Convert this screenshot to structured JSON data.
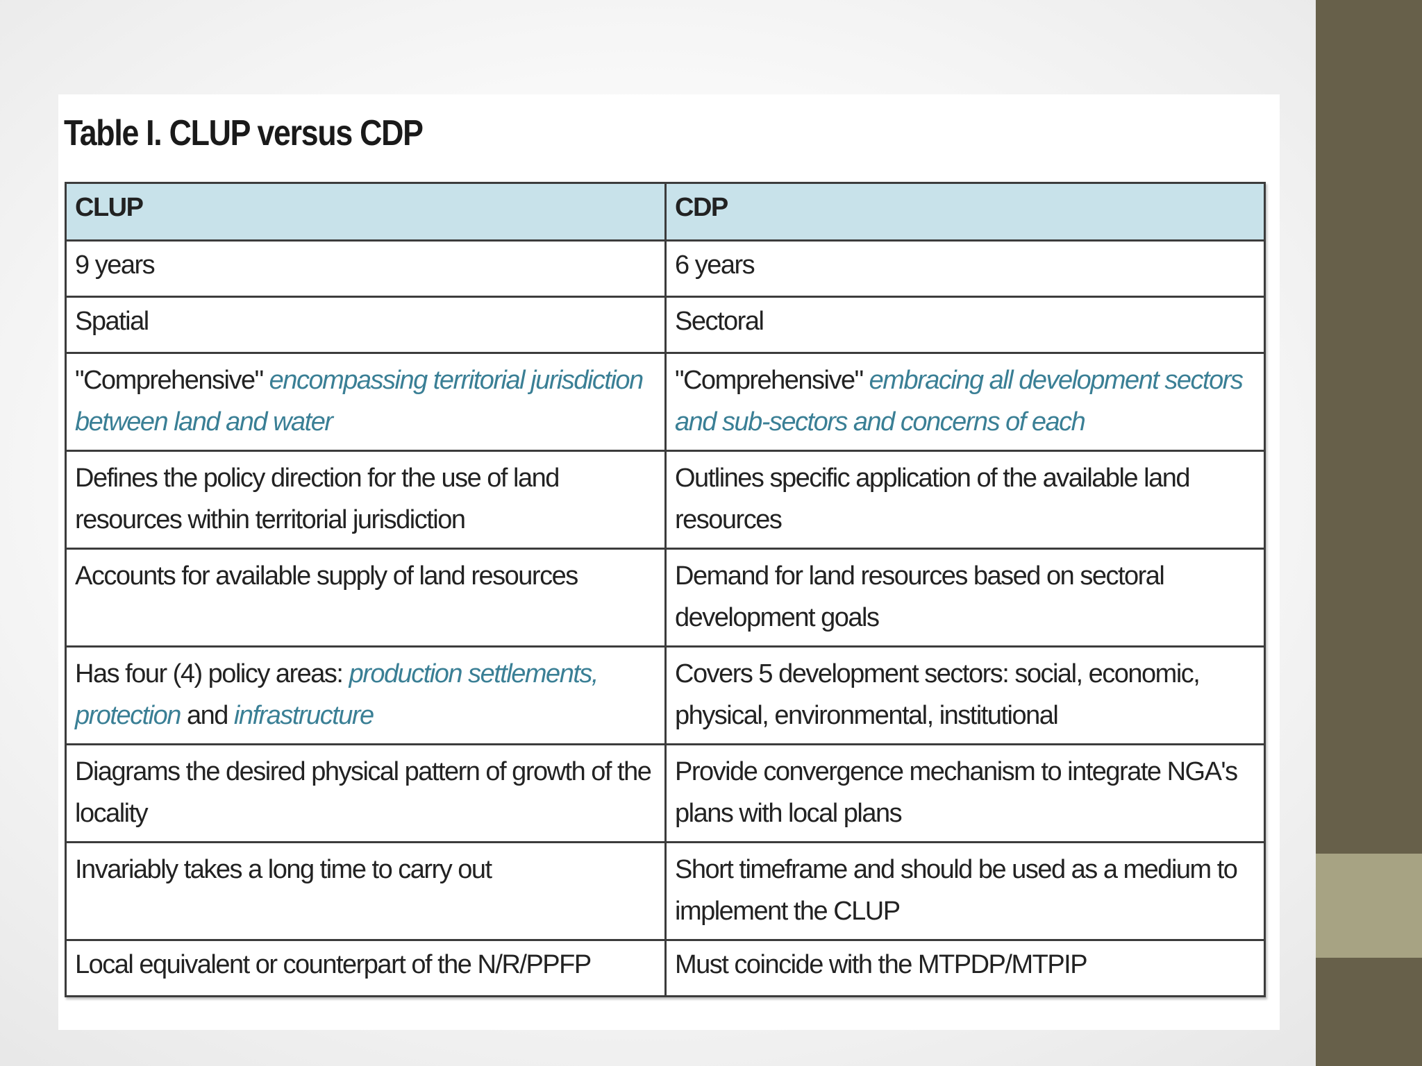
{
  "title": "Table I. CLUP versus CDP",
  "table": {
    "headers": [
      "CLUP",
      "CDP"
    ],
    "rows": [
      {
        "clup": "9 years",
        "cdp": "6 years"
      },
      {
        "clup": "Spatial",
        "cdp": "Sectoral"
      },
      {
        "clup_plain": "\"Comprehensive\"",
        "clup_em": "encompassing territorial jurisdiction between land and water",
        "cdp_plain": "\"Comprehensive\"",
        "cdp_em": "embracing all development sectors and sub-sectors and concerns of each"
      },
      {
        "clup": "Defines the policy direction for the use of land resources within territorial jurisdiction",
        "cdp": "Outlines specific application of the available land resources"
      },
      {
        "clup": "Accounts for available supply of land resources",
        "cdp": "Demand for land resources based on sectoral development goals"
      },
      {
        "clup_plain1": "Has four (4) policy areas:",
        "clup_em1": "production settlements, protection",
        "clup_plain2": "and",
        "clup_em2": "infrastructure",
        "cdp": "Covers 5 development sectors: social, economic, physical, environmental, institutional"
      },
      {
        "clup": "Diagrams the desired physical pattern of growth of the locality",
        "cdp": "Provide convergence mechanism to integrate NGA's plans with local plans"
      },
      {
        "clup": "Invariably takes a long time to carry out",
        "cdp": "Short timeframe and should be used as a medium to implement the CLUP"
      },
      {
        "clup": "Local equivalent or counterpart of the N/R/PPFP",
        "cdp": "Must coincide with the MTPDP/MTPIP"
      }
    ]
  },
  "colors": {
    "header_bg": "#c8e2ea",
    "emphasis_text": "#3a7f95",
    "side_band": "#67604a",
    "side_band_accent": "#a7a383"
  }
}
